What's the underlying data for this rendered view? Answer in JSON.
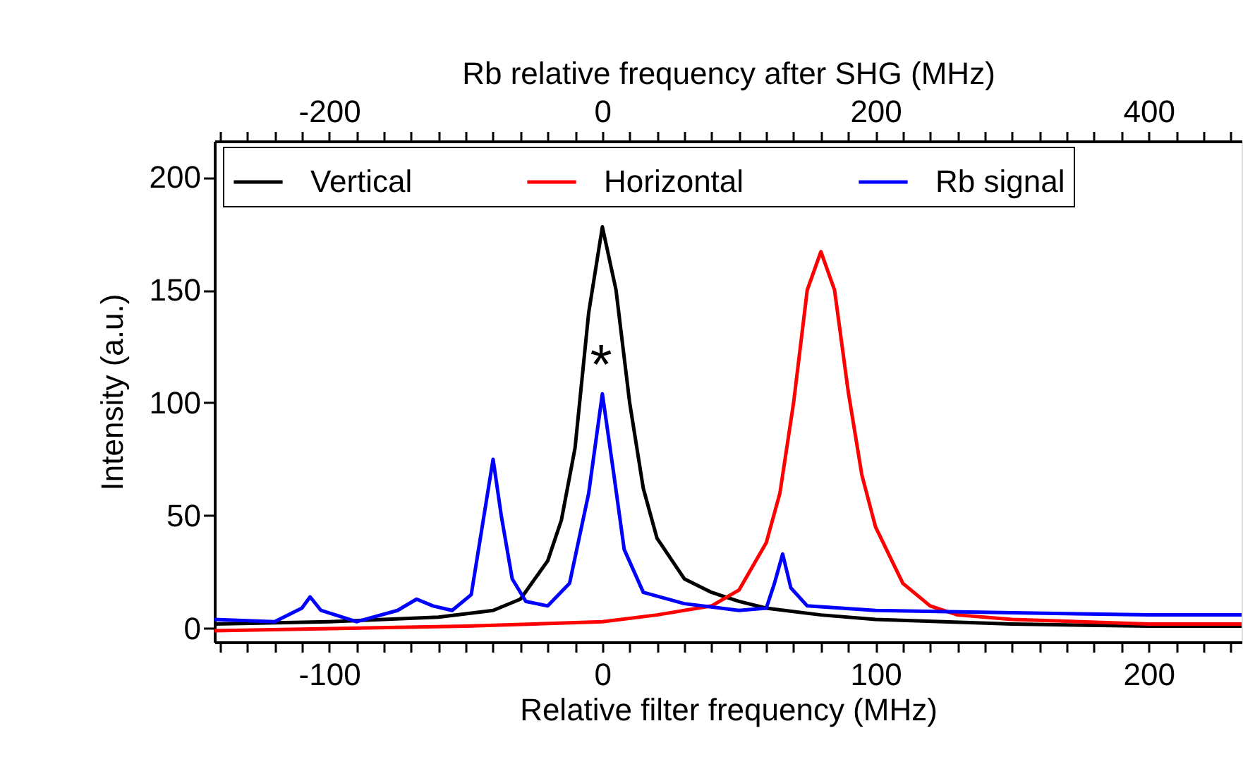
{
  "chart_data": {
    "type": "line",
    "xlabel": "Relative filter frequency (MHz)",
    "x2label": "Rb relative frequency after SHG (MHz)",
    "ylabel": "Intensity (a.u.)",
    "xlim": [
      -142,
      234
    ],
    "x2lim": [
      -284,
      468
    ],
    "ylim": [
      -6,
      216
    ],
    "xticks": [
      {
        "value": -140,
        "label": null
      },
      {
        "value": -130,
        "label": null
      },
      {
        "value": -120,
        "label": null
      },
      {
        "value": -110,
        "label": null
      },
      -100,
      {
        "value": -90,
        "label": null
      },
      {
        "value": -80,
        "label": null
      },
      {
        "value": -70,
        "label": null
      },
      {
        "value": -60,
        "label": null
      },
      {
        "value": -50,
        "label": null
      },
      {
        "value": -40,
        "label": null
      },
      {
        "value": -30,
        "label": null
      },
      {
        "value": -20,
        "label": null
      },
      {
        "value": -10,
        "label": null
      },
      0,
      {
        "value": 10,
        "label": null
      },
      {
        "value": 20,
        "label": null
      },
      {
        "value": 30,
        "label": null
      },
      {
        "value": 40,
        "label": null
      },
      {
        "value": 50,
        "label": null
      },
      {
        "value": 60,
        "label": null
      },
      {
        "value": 70,
        "label": null
      },
      {
        "value": 80,
        "label": null
      },
      {
        "value": 90,
        "label": null
      },
      100,
      {
        "value": 110,
        "label": null
      },
      {
        "value": 120,
        "label": null
      },
      {
        "value": 130,
        "label": null
      },
      {
        "value": 140,
        "label": null
      },
      {
        "value": 150,
        "label": null
      },
      {
        "value": 160,
        "label": null
      },
      {
        "value": 170,
        "label": null
      },
      {
        "value": 180,
        "label": null
      },
      {
        "value": 190,
        "label": null
      },
      200,
      {
        "value": 210,
        "label": null
      },
      {
        "value": 220,
        "label": null
      },
      {
        "value": 230,
        "label": null
      }
    ],
    "x2ticks": [
      {
        "value": -280,
        "label": null
      },
      {
        "value": -260,
        "label": null
      },
      {
        "value": -240,
        "label": null
      },
      {
        "value": -220,
        "label": null
      },
      -200,
      {
        "value": -180,
        "label": null
      },
      {
        "value": -160,
        "label": null
      },
      {
        "value": -140,
        "label": null
      },
      {
        "value": -120,
        "label": null
      },
      {
        "value": -100,
        "label": null
      },
      {
        "value": -80,
        "label": null
      },
      {
        "value": -60,
        "label": null
      },
      {
        "value": -40,
        "label": null
      },
      {
        "value": -20,
        "label": null
      },
      0,
      {
        "value": 20,
        "label": null
      },
      {
        "value": 40,
        "label": null
      },
      {
        "value": 60,
        "label": null
      },
      {
        "value": 80,
        "label": null
      },
      {
        "value": 100,
        "label": null
      },
      {
        "value": 120,
        "label": null
      },
      {
        "value": 140,
        "label": null
      },
      {
        "value": 160,
        "label": null
      },
      {
        "value": 180,
        "label": null
      },
      200,
      {
        "value": 220,
        "label": null
      },
      {
        "value": 240,
        "label": null
      },
      {
        "value": 260,
        "label": null
      },
      {
        "value": 280,
        "label": null
      },
      {
        "value": 300,
        "label": null
      },
      {
        "value": 320,
        "label": null
      },
      {
        "value": 340,
        "label": null
      },
      {
        "value": 360,
        "label": null
      },
      {
        "value": 380,
        "label": null
      },
      400,
      {
        "value": 420,
        "label": null
      },
      {
        "value": 440,
        "label": null
      },
      {
        "value": 460,
        "label": null
      }
    ],
    "yticks": [
      0,
      50,
      100,
      150,
      200
    ],
    "grid": false,
    "legend": "top",
    "line_style": "solid",
    "marker": "none",
    "annotations": [
      "*"
    ],
    "series": [
      {
        "name": "Vertical",
        "color": "#000000",
        "x": [
          -142,
          -100,
          -60,
          -40,
          -30,
          -20,
          -15,
          -10,
          -5,
          0,
          5,
          10,
          15,
          20,
          30,
          40,
          50,
          60,
          80,
          100,
          150,
          200,
          234
        ],
        "values": [
          2,
          3,
          5,
          8,
          13,
          30,
          48,
          80,
          140,
          178,
          150,
          100,
          62,
          40,
          22,
          16,
          12,
          9,
          6,
          4,
          2,
          1,
          1
        ]
      },
      {
        "name": "Horizontal",
        "color": "#ff0000",
        "x": [
          -142,
          -50,
          0,
          20,
          40,
          50,
          60,
          65,
          70,
          75,
          80,
          85,
          90,
          95,
          100,
          110,
          120,
          130,
          150,
          200,
          234
        ],
        "values": [
          -1,
          1,
          3,
          6,
          10,
          17,
          38,
          60,
          100,
          150,
          167,
          150,
          105,
          68,
          45,
          20,
          10,
          6,
          4,
          2,
          2
        ]
      },
      {
        "name": "Rb signal",
        "color": "#0000ff",
        "x": [
          -142,
          -120,
          -110,
          -107,
          -103,
          -90,
          -75,
          -68,
          -62,
          -55,
          -48,
          -44,
          -40,
          -37,
          -33,
          -28,
          -20,
          -12,
          -5,
          0,
          4,
          8,
          15,
          30,
          50,
          60,
          63,
          66,
          69,
          75,
          100,
          150,
          200,
          234
        ],
        "values": [
          4,
          3,
          9,
          14,
          8,
          3,
          8,
          13,
          10,
          8,
          15,
          45,
          75,
          50,
          22,
          12,
          10,
          20,
          60,
          104,
          70,
          35,
          16,
          11,
          8,
          9,
          20,
          33,
          18,
          10,
          8,
          7,
          6,
          6
        ]
      }
    ]
  }
}
